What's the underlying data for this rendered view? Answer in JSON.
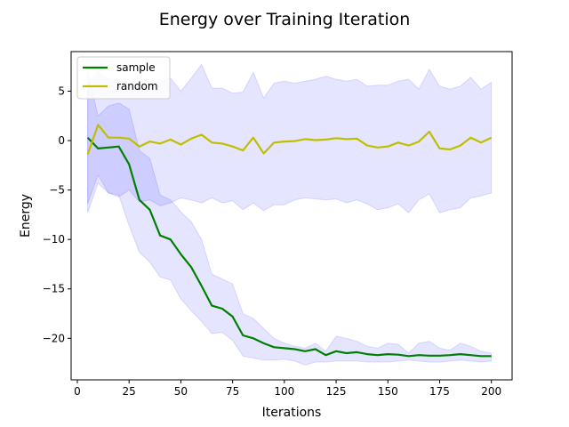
{
  "chart_data": {
    "type": "line",
    "title": "Energy over Training Iteration",
    "xlabel": "Iterations",
    "ylabel": "Energy",
    "xlim": [
      -3,
      210
    ],
    "ylim": [
      -24.2,
      9
    ],
    "xticks": [
      0,
      25,
      50,
      75,
      100,
      125,
      150,
      175,
      200
    ],
    "yticks": [
      5,
      0,
      -5,
      -10,
      -15,
      -20
    ],
    "grid": false,
    "legend_position": "top-left",
    "x": [
      5,
      10,
      15,
      20,
      25,
      30,
      35,
      40,
      45,
      50,
      55,
      60,
      65,
      70,
      75,
      80,
      85,
      90,
      95,
      100,
      105,
      110,
      115,
      120,
      125,
      130,
      135,
      140,
      145,
      150,
      155,
      160,
      165,
      170,
      175,
      180,
      185,
      190,
      195,
      200
    ],
    "series": [
      {
        "name": "sample",
        "color": "#008000",
        "values": [
          0.3,
          -0.8,
          -0.7,
          -0.6,
          -2.4,
          -6.0,
          -7.0,
          -9.6,
          -10.0,
          -11.5,
          -12.8,
          -14.7,
          -16.7,
          -17.0,
          -17.8,
          -19.7,
          -20.0,
          -20.5,
          -20.9,
          -21.0,
          -21.1,
          -21.3,
          -21.1,
          -21.7,
          -21.3,
          -21.5,
          -21.4,
          -21.6,
          -21.7,
          -21.6,
          -21.65,
          -21.8,
          -21.7,
          -21.75,
          -21.75,
          -21.7,
          -21.6,
          -21.7,
          -21.8,
          -21.8
        ],
        "band_upper": [
          7.0,
          2.5,
          3.5,
          3.8,
          3.2,
          -1.0,
          -1.8,
          -5.5,
          -6.0,
          -7.2,
          -8.2,
          -10.0,
          -13.5,
          -14.0,
          -14.5,
          -17.5,
          -18.0,
          -19.0,
          -20.0,
          -20.5,
          -20.8,
          -21.0,
          -20.5,
          -21.3,
          -19.8,
          -20.0,
          -20.3,
          -20.8,
          -21.0,
          -20.5,
          -20.6,
          -21.5,
          -20.5,
          -20.3,
          -21.0,
          -21.2,
          -20.5,
          -20.8,
          -21.3,
          -21.5
        ],
        "band_lower": [
          -7.3,
          -4.3,
          -5.3,
          -5.5,
          -8.6,
          -11.3,
          -12.3,
          -13.8,
          -14.1,
          -16.0,
          -17.2,
          -18.3,
          -19.5,
          -19.4,
          -20.2,
          -21.8,
          -22.0,
          -22.2,
          -22.2,
          -22.1,
          -22.3,
          -22.7,
          -22.4,
          -22.4,
          -22.3,
          -22.3,
          -22.3,
          -22.4,
          -22.4,
          -22.4,
          -22.3,
          -22.2,
          -22.3,
          -22.4,
          -22.4,
          -22.3,
          -22.2,
          -22.3,
          -22.4,
          -22.3
        ]
      },
      {
        "name": "random",
        "color": "#bfbf00",
        "values": [
          -1.4,
          1.6,
          0.3,
          0.3,
          0.2,
          -0.6,
          -0.1,
          -0.3,
          0.1,
          -0.4,
          0.2,
          0.6,
          -0.2,
          -0.3,
          -0.6,
          -1.0,
          0.3,
          -1.3,
          -0.2,
          -0.1,
          -0.05,
          0.15,
          0.05,
          0.1,
          0.25,
          0.15,
          0.2,
          -0.5,
          -0.7,
          -0.6,
          -0.2,
          -0.5,
          -0.1,
          0.9,
          -0.8,
          -0.9,
          -0.5,
          0.3,
          -0.2,
          0.3
        ],
        "band_upper": [
          5.8,
          7.0,
          6.3,
          6.0,
          5.5,
          5.8,
          5.7,
          6.0,
          6.3,
          5.0,
          6.3,
          7.7,
          5.3,
          5.3,
          4.8,
          4.9,
          6.9,
          4.3,
          5.8,
          6.0,
          5.8,
          6.0,
          6.2,
          6.5,
          6.2,
          6.0,
          6.2,
          5.5,
          5.6,
          5.6,
          6.0,
          6.2,
          5.2,
          7.2,
          5.5,
          5.2,
          5.5,
          6.4,
          5.2,
          5.9
        ],
        "band_lower": [
          -6.4,
          -3.5,
          -5.3,
          -5.7,
          -5.0,
          -6.2,
          -6.0,
          -6.6,
          -6.3,
          -5.8,
          -6.0,
          -6.3,
          -5.8,
          -6.3,
          -6.1,
          -7.0,
          -6.3,
          -7.1,
          -6.5,
          -6.5,
          -6.0,
          -5.8,
          -5.9,
          -6.0,
          -5.9,
          -6.3,
          -6.0,
          -6.4,
          -7.0,
          -6.8,
          -6.4,
          -7.3,
          -6.0,
          -5.4,
          -7.3,
          -7.0,
          -6.8,
          -5.8,
          -5.6,
          -5.3
        ]
      }
    ],
    "band_color": "#0000ff",
    "band_opacity": 0.1
  }
}
